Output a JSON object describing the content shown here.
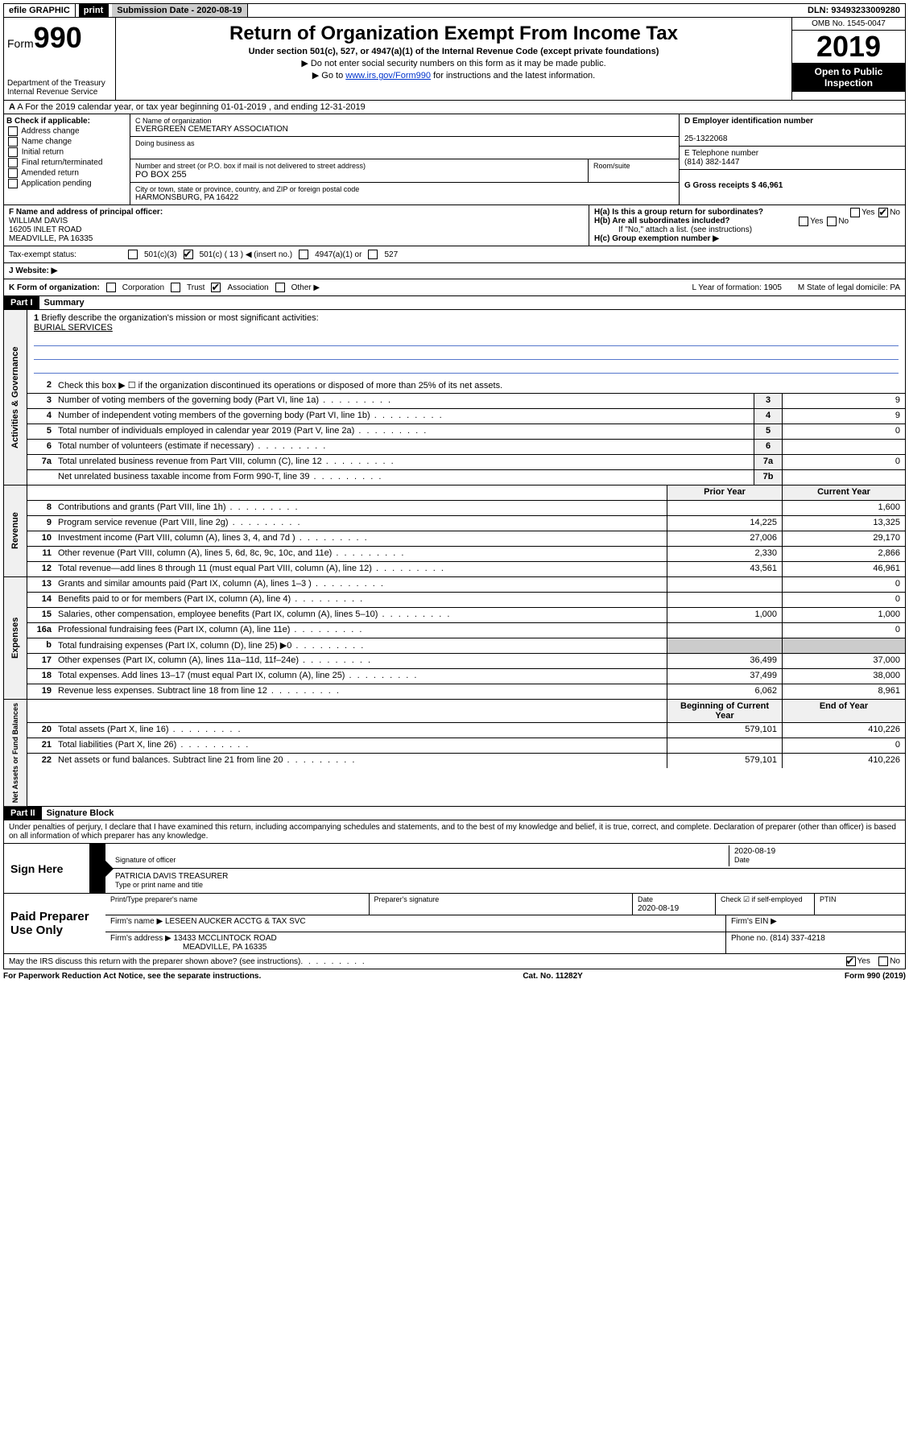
{
  "topbar": {
    "efile": "efile GRAPHIC",
    "print": "print",
    "submission_label": "Submission Date - 2020-08-19",
    "dln": "DLN: 93493233009280"
  },
  "header": {
    "form_prefix": "Form",
    "form_number": "990",
    "dept": "Department of the Treasury",
    "irs": "Internal Revenue Service",
    "title": "Return of Organization Exempt From Income Tax",
    "subtitle": "Under section 501(c), 527, or 4947(a)(1) of the Internal Revenue Code (except private foundations)",
    "line1": "▶ Do not enter social security numbers on this form as it may be made public.",
    "line2_pre": "▶ Go to ",
    "line2_link": "www.irs.gov/Form990",
    "line2_post": " for instructions and the latest information.",
    "omb": "OMB No. 1545-0047",
    "year": "2019",
    "open": "Open to Public Inspection"
  },
  "lineA": "A For the 2019 calendar year, or tax year beginning 01-01-2019   , and ending 12-31-2019",
  "colB": {
    "header": "B Check if applicable:",
    "items": [
      "Address change",
      "Name change",
      "Initial return",
      "Final return/terminated",
      "Amended return",
      "Application pending"
    ]
  },
  "colC": {
    "name_label": "C Name of organization",
    "name": "EVERGREEN CEMETARY ASSOCIATION",
    "dba_label": "Doing business as",
    "addr_label": "Number and street (or P.O. box if mail is not delivered to street address)",
    "room_label": "Room/suite",
    "addr": "PO BOX 255",
    "city_label": "City or town, state or province, country, and ZIP or foreign postal code",
    "city": "HARMONSBURG, PA  16422"
  },
  "colD": {
    "d_label": "D Employer identification number",
    "ein": "25-1322068",
    "e_label": "E Telephone number",
    "phone": "(814) 382-1447",
    "g_label": "G Gross receipts $ 46,961"
  },
  "colF": {
    "label": "F  Name and address of principal officer:",
    "name": "WILLIAM DAVIS",
    "addr1": "16205 INLET ROAD",
    "addr2": "MEADVILLE, PA  16335"
  },
  "colH": {
    "ha": "H(a)  Is this a group return for subordinates?",
    "hb": "H(b)  Are all subordinates included?",
    "hb_note": "If \"No,\" attach a list. (see instructions)",
    "hc": "H(c)  Group exemption number ▶"
  },
  "rowI": {
    "label": "Tax-exempt status:",
    "opt1": "501(c)(3)",
    "opt2": "501(c) ( 13 ) ◀ (insert no.)",
    "opt3": "4947(a)(1) or",
    "opt4": "527"
  },
  "rowJ": "J   Website: ▶",
  "rowK": {
    "label": "K Form of organization:",
    "opts": [
      "Corporation",
      "Trust",
      "Association",
      "Other ▶"
    ],
    "l": "L Year of formation: 1905",
    "m": "M State of legal domicile: PA"
  },
  "part1": {
    "header": "Part I",
    "title": "Summary",
    "q1": "Briefly describe the organization's mission or most significant activities:",
    "mission": "BURIAL SERVICES",
    "q2": "Check this box ▶ ☐  if the organization discontinued its operations or disposed of more than 25% of its net assets.",
    "rows_gov": [
      {
        "n": "3",
        "d": "Number of voting members of the governing body (Part VI, line 1a)",
        "box": "3",
        "v": "9"
      },
      {
        "n": "4",
        "d": "Number of independent voting members of the governing body (Part VI, line 1b)",
        "box": "4",
        "v": "9"
      },
      {
        "n": "5",
        "d": "Total number of individuals employed in calendar year 2019 (Part V, line 2a)",
        "box": "5",
        "v": "0"
      },
      {
        "n": "6",
        "d": "Total number of volunteers (estimate if necessary)",
        "box": "6",
        "v": ""
      },
      {
        "n": "7a",
        "d": "Total unrelated business revenue from Part VIII, column (C), line 12",
        "box": "7a",
        "v": "0"
      },
      {
        "n": "",
        "d": "Net unrelated business taxable income from Form 990-T, line 39",
        "box": "7b",
        "v": ""
      }
    ],
    "col_prior": "Prior Year",
    "col_current": "Current Year",
    "rows_rev": [
      {
        "n": "8",
        "d": "Contributions and grants (Part VIII, line 1h)",
        "p": "",
        "c": "1,600"
      },
      {
        "n": "9",
        "d": "Program service revenue (Part VIII, line 2g)",
        "p": "14,225",
        "c": "13,325"
      },
      {
        "n": "10",
        "d": "Investment income (Part VIII, column (A), lines 3, 4, and 7d )",
        "p": "27,006",
        "c": "29,170"
      },
      {
        "n": "11",
        "d": "Other revenue (Part VIII, column (A), lines 5, 6d, 8c, 9c, 10c, and 11e)",
        "p": "2,330",
        "c": "2,866"
      },
      {
        "n": "12",
        "d": "Total revenue—add lines 8 through 11 (must equal Part VIII, column (A), line 12)",
        "p": "43,561",
        "c": "46,961"
      }
    ],
    "rows_exp": [
      {
        "n": "13",
        "d": "Grants and similar amounts paid (Part IX, column (A), lines 1–3 )",
        "p": "",
        "c": "0"
      },
      {
        "n": "14",
        "d": "Benefits paid to or for members (Part IX, column (A), line 4)",
        "p": "",
        "c": "0"
      },
      {
        "n": "15",
        "d": "Salaries, other compensation, employee benefits (Part IX, column (A), lines 5–10)",
        "p": "1,000",
        "c": "1,000"
      },
      {
        "n": "16a",
        "d": "Professional fundraising fees (Part IX, column (A), line 11e)",
        "p": "",
        "c": "0"
      },
      {
        "n": "b",
        "d": "Total fundraising expenses (Part IX, column (D), line 25) ▶0",
        "p": "gray",
        "c": "gray"
      },
      {
        "n": "17",
        "d": "Other expenses (Part IX, column (A), lines 11a–11d, 11f–24e)",
        "p": "36,499",
        "c": "37,000"
      },
      {
        "n": "18",
        "d": "Total expenses. Add lines 13–17 (must equal Part IX, column (A), line 25)",
        "p": "37,499",
        "c": "38,000"
      },
      {
        "n": "19",
        "d": "Revenue less expenses. Subtract line 18 from line 12",
        "p": "6,062",
        "c": "8,961"
      }
    ],
    "col_begin": "Beginning of Current Year",
    "col_end": "End of Year",
    "rows_net": [
      {
        "n": "20",
        "d": "Total assets (Part X, line 16)",
        "p": "579,101",
        "c": "410,226"
      },
      {
        "n": "21",
        "d": "Total liabilities (Part X, line 26)",
        "p": "",
        "c": "0"
      },
      {
        "n": "22",
        "d": "Net assets or fund balances. Subtract line 21 from line 20",
        "p": "579,101",
        "c": "410,226"
      }
    ]
  },
  "part2": {
    "header": "Part II",
    "title": "Signature Block",
    "perjury": "Under penalties of perjury, I declare that I have examined this return, including accompanying schedules and statements, and to the best of my knowledge and belief, it is true, correct, and complete. Declaration of preparer (other than officer) is based on all information of which preparer has any knowledge."
  },
  "sign": {
    "label": "Sign Here",
    "sig_label": "Signature of officer",
    "date": "2020-08-19",
    "date_label": "Date",
    "name": "PATRICIA DAVIS TREASURER",
    "name_label": "Type or print name and title"
  },
  "preparer": {
    "label": "Paid Preparer Use Only",
    "print_label": "Print/Type preparer's name",
    "sig_label": "Preparer's signature",
    "date_label": "Date",
    "date": "2020-08-19",
    "check_label": "Check ☑ if self-employed",
    "ptin_label": "PTIN",
    "firm_name_label": "Firm's name    ▶",
    "firm_name": "LESEEN AUCKER ACCTG & TAX SVC",
    "firm_ein_label": "Firm's EIN ▶",
    "firm_addr_label": "Firm's address ▶",
    "firm_addr1": "13433 MCCLINTOCK ROAD",
    "firm_addr2": "MEADVILLE, PA  16335",
    "phone_label": "Phone no. (814) 337-4218"
  },
  "discuss": "May the IRS discuss this return with the preparer shown above? (see instructions)",
  "footer": {
    "left": "For Paperwork Reduction Act Notice, see the separate instructions.",
    "center": "Cat. No. 11282Y",
    "right": "Form 990 (2019)"
  }
}
